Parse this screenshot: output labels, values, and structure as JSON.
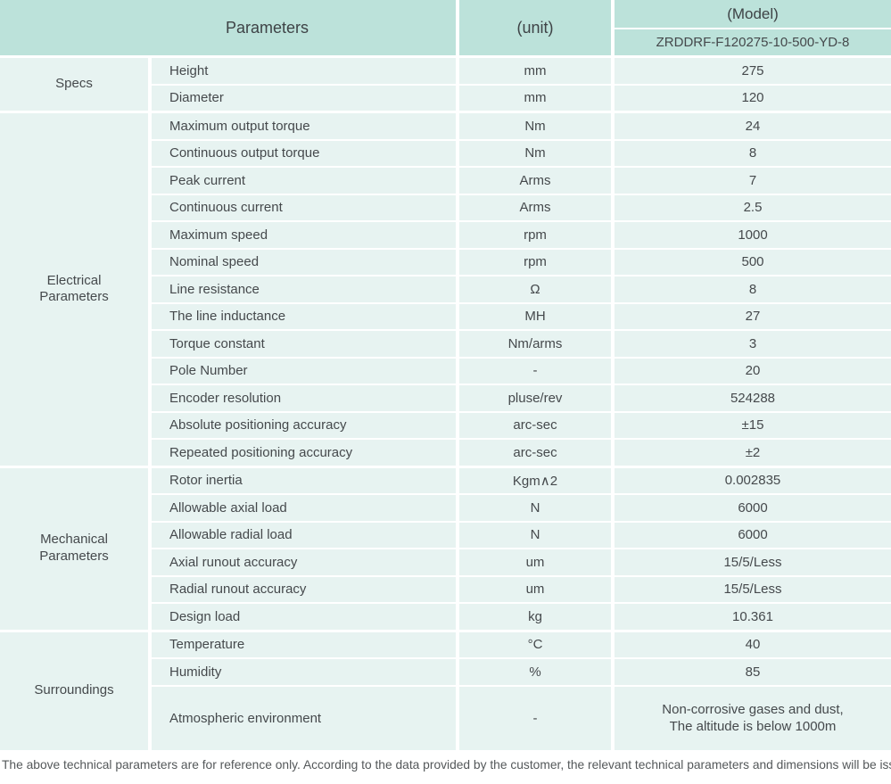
{
  "header": {
    "parameters_label": "Parameters",
    "unit_label": "(unit)",
    "model_label": "(Model)",
    "model_number": "ZRDDRF-F120275-10-500-YD-8"
  },
  "groups": [
    {
      "label": "Specs",
      "rows": [
        {
          "name": "Height",
          "unit": "mm",
          "value": "275"
        },
        {
          "name": "Diameter",
          "unit": "mm",
          "value": "120"
        }
      ]
    },
    {
      "label": "Electrical Parameters",
      "rows": [
        {
          "name": "Maximum output torque",
          "unit": "Nm",
          "value": "24"
        },
        {
          "name": "Continuous output torque",
          "unit": "Nm",
          "value": "8"
        },
        {
          "name": "Peak current",
          "unit": "Arms",
          "value": "7"
        },
        {
          "name": "Continuous current",
          "unit": "Arms",
          "value": "2.5"
        },
        {
          "name": "Maximum speed",
          "unit": "rpm",
          "value": "1000"
        },
        {
          "name": "Nominal speed",
          "unit": "rpm",
          "value": "500"
        },
        {
          "name": "Line resistance",
          "unit": "Ω",
          "value": "8"
        },
        {
          "name": "The line inductance",
          "unit": "MH",
          "value": "27"
        },
        {
          "name": "Torque constant",
          "unit": "Nm/arms",
          "value": "3"
        },
        {
          "name": "Pole Number",
          "unit": "-",
          "value": "20"
        },
        {
          "name": "Encoder resolution",
          "unit": "pluse/rev",
          "value": "524288"
        },
        {
          "name": "Absolute positioning accuracy",
          "unit": "arc-sec",
          "value": "±15"
        },
        {
          "name": "Repeated positioning accuracy",
          "unit": "arc-sec",
          "value": "±2"
        }
      ]
    },
    {
      "label": "Mechanical Parameters",
      "rows": [
        {
          "name": "Rotor inertia",
          "unit": "Kgm∧2",
          "value": "0.002835"
        },
        {
          "name": "Allowable axial load",
          "unit": "N",
          "value": "6000"
        },
        {
          "name": "Allowable radial load",
          "unit": "N",
          "value": "6000"
        },
        {
          "name": "Axial runout accuracy",
          "unit": "um",
          "value": "15/5/Less"
        },
        {
          "name": "Radial runout accuracy",
          "unit": "um",
          "value": "15/5/Less"
        },
        {
          "name": "Design load",
          "unit": "kg",
          "value": "10.361"
        }
      ]
    },
    {
      "label": "Surroundings",
      "rows": [
        {
          "name": "Temperature",
          "unit": "°C",
          "value": "40"
        },
        {
          "name": "Humidity",
          "unit": "%",
          "value": "85"
        },
        {
          "name": "Atmospheric environment",
          "unit": "-",
          "value": "Non-corrosive gases and dust,\nThe altitude is below 1000m"
        }
      ]
    }
  ],
  "footer": {
    "note": "The above technical parameters are for reference only. According to the data provided by the customer, the relevant technical parameters and dimensions will be issued."
  },
  "colors": {
    "header_bg": "#bce2da",
    "row_bg": "#e7f3f1",
    "text": "#45494c",
    "footer_text": "#54585a"
  }
}
